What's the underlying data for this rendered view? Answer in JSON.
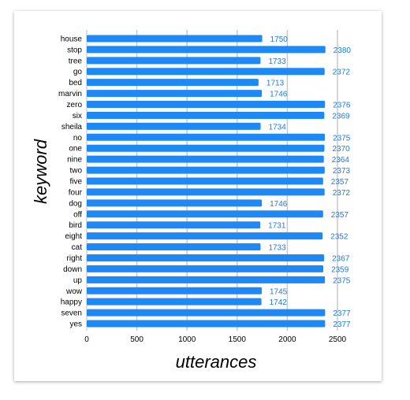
{
  "chart_data": {
    "type": "bar",
    "orientation": "horizontal",
    "categories": [
      "house",
      "stop",
      "tree",
      "go",
      "bed",
      "marvin",
      "zero",
      "six",
      "sheila",
      "no",
      "one",
      "nine",
      "two",
      "five",
      "four",
      "dog",
      "off",
      "bird",
      "eight",
      "cat",
      "right",
      "down",
      "up",
      "wow",
      "happy",
      "seven",
      "yes"
    ],
    "values": [
      1750,
      2380,
      1733,
      2372,
      1713,
      1746,
      2376,
      2369,
      1734,
      2375,
      2370,
      2364,
      2373,
      2357,
      2372,
      1746,
      2357,
      1731,
      2352,
      1733,
      2367,
      2359,
      2375,
      1745,
      1742,
      2377,
      2377
    ],
    "value_labels": [
      "1750",
      "2380",
      "1733",
      "2372",
      "1713",
      "1746",
      "2376",
      "2369",
      "1734",
      "2375",
      "2370",
      "2364",
      "2373",
      "2357",
      "2372",
      "1746",
      "2357",
      "1731",
      "2352",
      "1733",
      "2367",
      "2359",
      "2375",
      "1745",
      "1742",
      "2377",
      "2377"
    ],
    "xlabel": "utterances",
    "ylabel": "keyword",
    "xlim": [
      0,
      2500
    ],
    "x_ticks": [
      "0",
      "500",
      "1000",
      "1500",
      "2000",
      "2500"
    ],
    "grid": true,
    "bar_color": "#1e88f5",
    "label_color": "#1e7be0"
  }
}
